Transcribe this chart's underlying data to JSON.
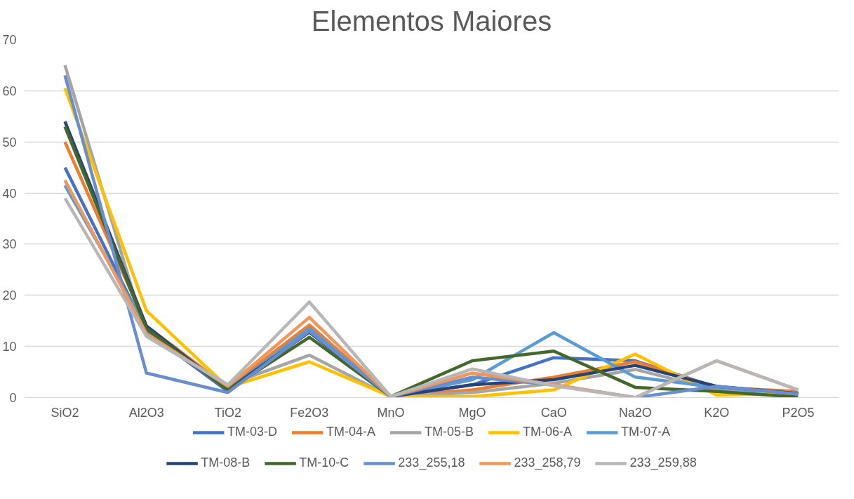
{
  "chart_data": {
    "type": "line",
    "title": "Elementos Maiores",
    "categories": [
      "SiO2",
      "Al2O3",
      "TiO2",
      "Fe2O3",
      "MnO",
      "MgO",
      "CaO",
      "Na2O",
      "K2O",
      "P2O5"
    ],
    "series": [
      {
        "name": "TM-03-D",
        "color": "#4472c4",
        "values": [
          45,
          13,
          1.2,
          13,
          0.2,
          2.5,
          7.8,
          7.2,
          2,
          0.8
        ]
      },
      {
        "name": "TM-04-A",
        "color": "#ed7d31",
        "values": [
          50,
          14,
          2,
          14.2,
          0.2,
          1.5,
          4,
          7,
          2,
          1.2
        ]
      },
      {
        "name": "TM-05-B",
        "color": "#a5a5a5",
        "values": [
          65,
          12,
          2.5,
          8.3,
          0.2,
          1,
          2.8,
          5.5,
          1.5,
          0.8
        ]
      },
      {
        "name": "TM-06-A",
        "color": "#ffc000",
        "values": [
          60.5,
          17,
          2,
          7,
          0.2,
          0.2,
          1.5,
          8.5,
          0.5,
          0.8
        ]
      },
      {
        "name": "TM-07-A",
        "color": "#5b9bd5",
        "values": [
          41.5,
          13.5,
          1.5,
          13.5,
          0.2,
          3.5,
          12.7,
          4,
          2,
          0.8
        ]
      },
      {
        "name": "TM-08-B",
        "color": "#264478",
        "values": [
          54,
          14,
          1.5,
          12.8,
          0.2,
          2.5,
          3.5,
          6.3,
          2.2,
          0.8
        ]
      },
      {
        "name": "TM-10-C",
        "color": "#43682b",
        "values": [
          53,
          13.5,
          1.5,
          11.8,
          0.2,
          7.2,
          9.1,
          2,
          1.2,
          0.1
        ]
      },
      {
        "name": "233_255,18",
        "color": "#698ed0",
        "values": [
          63,
          4.8,
          1,
          13,
          0.2,
          4,
          2.5,
          0,
          2.2,
          0.7
        ]
      },
      {
        "name": "233_258,79",
        "color": "#f1975a",
        "values": [
          42.5,
          12.5,
          2.2,
          15.7,
          0.2,
          4.8,
          2.5,
          0,
          7.2,
          1.5
        ]
      },
      {
        "name": "233_259,88",
        "color": "#b7b7b7",
        "values": [
          39,
          12,
          2.5,
          18.7,
          0.2,
          5.6,
          2.3,
          0,
          7.2,
          1.5
        ]
      }
    ],
    "ylim": [
      0,
      70
    ],
    "yticks": [
      0,
      10,
      20,
      30,
      40,
      50,
      60,
      70
    ],
    "grid": "y",
    "legend": "bottom",
    "line_style": "solid"
  }
}
